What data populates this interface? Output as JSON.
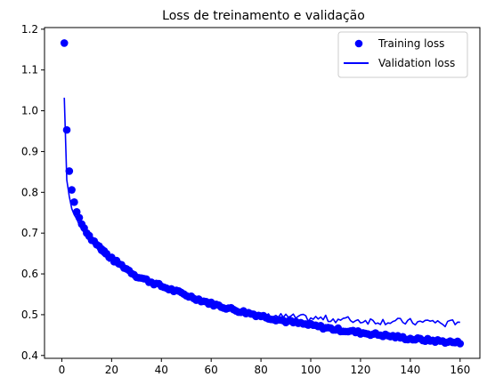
{
  "chart_data": {
    "type": "line",
    "title": "Loss de treinamento e validação",
    "xlabel": "",
    "ylabel": "",
    "xlim": [
      -6.95,
      167.95
    ],
    "ylim": [
      0.393,
      1.204
    ],
    "xticks": [
      0,
      20,
      40,
      60,
      80,
      100,
      120,
      140,
      160
    ],
    "yticks": [
      0.4,
      0.5,
      0.6,
      0.7,
      0.8,
      0.9,
      1.0,
      1.1,
      1.2
    ],
    "ytick_labels": [
      "0.4",
      "0.5",
      "0.6",
      "0.7",
      "0.8",
      "0.9",
      "1.0",
      "1.1",
      "1.2"
    ],
    "legend_position": "top-right",
    "grid": false,
    "series": [
      {
        "name": "Training loss",
        "style": "markers",
        "color": "#0000ff",
        "anchors": [
          [
            1,
            1.166
          ],
          [
            2,
            0.953
          ],
          [
            3,
            0.852
          ],
          [
            4,
            0.806
          ],
          [
            5,
            0.776
          ],
          [
            6,
            0.752
          ],
          [
            7,
            0.738
          ],
          [
            8,
            0.722
          ],
          [
            10,
            0.703
          ],
          [
            12,
            0.686
          ],
          [
            15,
            0.667
          ],
          [
            20,
            0.637
          ],
          [
            25,
            0.617
          ],
          [
            30,
            0.595
          ],
          [
            40,
            0.57
          ],
          [
            50,
            0.548
          ],
          [
            60,
            0.527
          ],
          [
            70,
            0.511
          ],
          [
            80,
            0.497
          ],
          [
            90,
            0.484
          ],
          [
            100,
            0.474
          ],
          [
            110,
            0.464
          ],
          [
            120,
            0.456
          ],
          [
            130,
            0.449
          ],
          [
            140,
            0.441
          ],
          [
            150,
            0.436
          ],
          [
            160,
            0.431
          ]
        ]
      },
      {
        "name": "Validation loss",
        "style": "line",
        "color": "#0000ff",
        "anchors": [
          [
            1,
            1.032
          ],
          [
            2,
            0.83
          ],
          [
            3,
            0.79
          ],
          [
            4,
            0.76
          ],
          [
            5,
            0.745
          ],
          [
            6,
            0.735
          ],
          [
            7,
            0.72
          ],
          [
            8,
            0.71
          ],
          [
            10,
            0.69
          ],
          [
            12,
            0.676
          ],
          [
            15,
            0.657
          ],
          [
            20,
            0.63
          ],
          [
            25,
            0.612
          ],
          [
            30,
            0.591
          ],
          [
            40,
            0.567
          ],
          [
            50,
            0.546
          ],
          [
            60,
            0.526
          ],
          [
            70,
            0.512
          ],
          [
            80,
            0.5
          ],
          [
            90,
            0.494
          ],
          [
            100,
            0.491
          ],
          [
            110,
            0.489
          ],
          [
            120,
            0.486
          ],
          [
            130,
            0.484
          ],
          [
            140,
            0.482
          ],
          [
            145,
            0.48
          ],
          [
            148,
            0.487
          ],
          [
            150,
            0.482
          ],
          [
            155,
            0.476
          ],
          [
            158,
            0.483
          ],
          [
            160,
            0.486
          ]
        ]
      }
    ]
  }
}
